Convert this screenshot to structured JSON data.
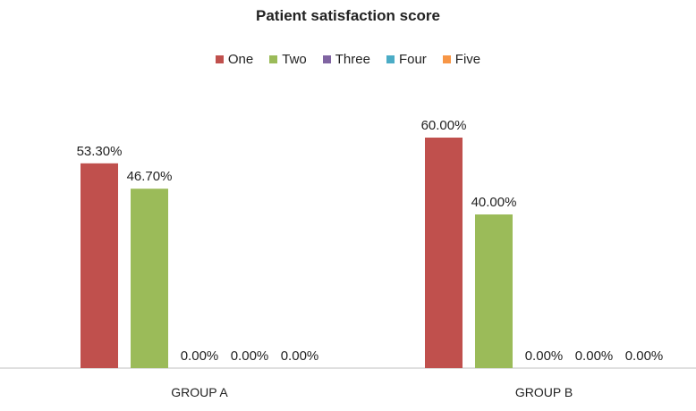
{
  "chart_data": {
    "type": "bar",
    "title": "Patient satisfaction score",
    "categories": [
      "GROUP A",
      "GROUP B"
    ],
    "series": [
      {
        "name": "One",
        "color": "#c0504d",
        "values": [
          53.3,
          60.0
        ],
        "labels": [
          "53.30%",
          "60.00%"
        ]
      },
      {
        "name": "Two",
        "color": "#9bbb59",
        "values": [
          46.7,
          40.0
        ],
        "labels": [
          "46.70%",
          "40.00%"
        ]
      },
      {
        "name": "Three",
        "color": "#8064a2",
        "values": [
          0,
          0
        ],
        "labels": [
          "0.00%",
          "0.00%"
        ]
      },
      {
        "name": "Four",
        "color": "#4bacc6",
        "values": [
          0,
          0
        ],
        "labels": [
          "0.00%",
          "0.00%"
        ]
      },
      {
        "name": "Five",
        "color": "#f79646",
        "values": [
          0,
          0
        ],
        "labels": [
          "0.00%",
          "0.00%"
        ]
      }
    ],
    "xlabel": "",
    "ylabel": "",
    "ylim": [
      0,
      60
    ],
    "grid": false,
    "legend_position": "top"
  }
}
